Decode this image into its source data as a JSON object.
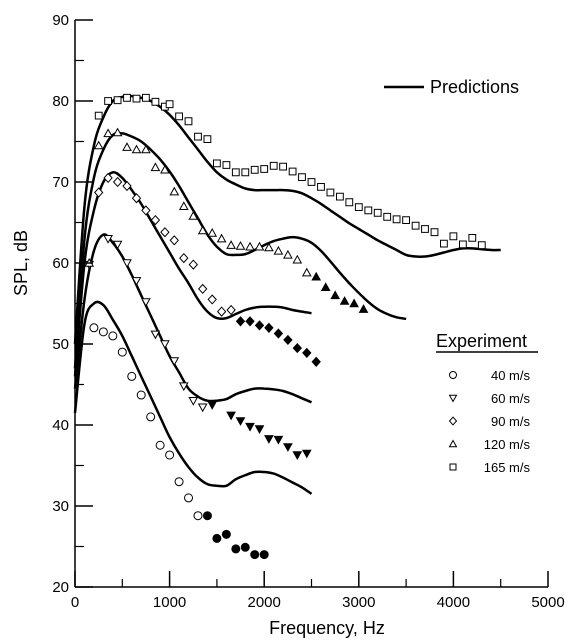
{
  "chart_data": {
    "type": "scatter",
    "title": "",
    "xlabel": "Frequency,   Hz",
    "ylabel": "SPL,   dB",
    "xlim": [
      0,
      5000
    ],
    "ylim": [
      20,
      90
    ],
    "xticks": [
      0,
      1000,
      2000,
      3000,
      4000,
      5000
    ],
    "yticks": [
      20,
      30,
      40,
      50,
      60,
      70,
      80,
      90
    ],
    "grid": false,
    "predictions_label": "Predictions",
    "experiment_title": "Experiment",
    "experiment_series": [
      {
        "name": "40 m/s",
        "marker": "circle",
        "open": [
          [
            200,
            52
          ],
          [
            300,
            51.5
          ],
          [
            400,
            51
          ],
          [
            500,
            49
          ],
          [
            600,
            46
          ],
          [
            700,
            43.7
          ],
          [
            800,
            41
          ],
          [
            900,
            37.5
          ],
          [
            1000,
            36.3
          ],
          [
            1100,
            33
          ],
          [
            1200,
            31
          ],
          [
            1300,
            28.8
          ]
        ],
        "filled": [
          [
            1400,
            28.8
          ],
          [
            1500,
            26
          ],
          [
            1600,
            26.5
          ],
          [
            1700,
            24.7
          ],
          [
            1800,
            24.9
          ],
          [
            1900,
            24
          ],
          [
            2000,
            24
          ]
        ]
      },
      {
        "name": "60 m/s",
        "marker": "triangle-down",
        "open": [
          [
            150,
            59.8
          ],
          [
            350,
            63
          ],
          [
            450,
            62.3
          ],
          [
            550,
            60
          ],
          [
            650,
            57.8
          ],
          [
            750,
            55.2
          ],
          [
            850,
            51.2
          ],
          [
            950,
            50
          ],
          [
            1050,
            47.9
          ],
          [
            1150,
            44.8
          ],
          [
            1250,
            43
          ],
          [
            1350,
            42.2
          ]
        ],
        "filled": [
          [
            1450,
            42.5
          ],
          [
            1650,
            41.2
          ],
          [
            1750,
            40.5
          ],
          [
            1850,
            39.8
          ],
          [
            1950,
            39.5
          ],
          [
            2050,
            38.3
          ],
          [
            2150,
            38.2
          ],
          [
            2250,
            37.3
          ],
          [
            2350,
            36.3
          ],
          [
            2450,
            36.5
          ]
        ]
      },
      {
        "name": "90 m/s",
        "marker": "diamond",
        "open": [
          [
            250,
            68.7
          ],
          [
            350,
            70.5
          ],
          [
            450,
            70
          ],
          [
            550,
            69.5
          ],
          [
            650,
            68
          ],
          [
            750,
            66.5
          ],
          [
            850,
            65.3
          ],
          [
            950,
            63.8
          ],
          [
            1050,
            62.8
          ],
          [
            1150,
            60.6
          ],
          [
            1250,
            59.8
          ],
          [
            1350,
            56.8
          ],
          [
            1450,
            55.5
          ],
          [
            1550,
            54
          ],
          [
            1650,
            54.2
          ]
        ],
        "filled": [
          [
            1750,
            52.8
          ],
          [
            1850,
            52.8
          ],
          [
            1950,
            52.3
          ],
          [
            2050,
            52
          ],
          [
            2150,
            51.3
          ],
          [
            2250,
            50.5
          ],
          [
            2350,
            49.5
          ],
          [
            2450,
            48.9
          ],
          [
            2550,
            47.8
          ]
        ]
      },
      {
        "name": "120 m/s",
        "marker": "triangle-up",
        "open": [
          [
            150,
            60
          ],
          [
            250,
            74.5
          ],
          [
            350,
            76
          ],
          [
            450,
            76.1
          ],
          [
            550,
            74.3
          ],
          [
            650,
            74
          ],
          [
            750,
            74
          ],
          [
            850,
            71.8
          ],
          [
            950,
            71.5
          ],
          [
            1050,
            68.8
          ],
          [
            1150,
            67
          ],
          [
            1250,
            65.8
          ],
          [
            1350,
            64
          ],
          [
            1450,
            63.7
          ],
          [
            1550,
            63
          ],
          [
            1650,
            62.2
          ],
          [
            1750,
            62.1
          ],
          [
            1850,
            62
          ],
          [
            1950,
            62
          ],
          [
            2050,
            61.9
          ],
          [
            2150,
            61.5
          ],
          [
            2250,
            61
          ],
          [
            2350,
            60.4
          ],
          [
            2450,
            58.8
          ]
        ],
        "filled": [
          [
            2550,
            58.3
          ],
          [
            2650,
            57
          ],
          [
            2750,
            56
          ],
          [
            2850,
            55.3
          ],
          [
            2950,
            55
          ],
          [
            3050,
            54.3
          ]
        ]
      },
      {
        "name": "165 m/s",
        "marker": "square",
        "open": [
          [
            250,
            78.2
          ],
          [
            350,
            80
          ],
          [
            450,
            80.1
          ],
          [
            550,
            80.4
          ],
          [
            650,
            80.3
          ],
          [
            750,
            80.4
          ],
          [
            850,
            79.9
          ],
          [
            950,
            79.3
          ],
          [
            1000,
            79.6
          ],
          [
            1100,
            78.1
          ],
          [
            1200,
            77.5
          ],
          [
            1300,
            75.6
          ],
          [
            1400,
            75.3
          ],
          [
            1500,
            72.3
          ],
          [
            1600,
            72.1
          ],
          [
            1700,
            71.2
          ],
          [
            1800,
            71.2
          ],
          [
            1900,
            71.5
          ],
          [
            2000,
            71.6
          ],
          [
            2100,
            72
          ],
          [
            2200,
            71.9
          ],
          [
            2300,
            71.3
          ],
          [
            2400,
            70.6
          ],
          [
            2500,
            70
          ],
          [
            2600,
            69.4
          ],
          [
            2700,
            68.7
          ],
          [
            2800,
            68.2
          ],
          [
            2900,
            67.5
          ],
          [
            3000,
            66.9
          ],
          [
            3100,
            66.5
          ],
          [
            3200,
            66.2
          ],
          [
            3300,
            65.7
          ],
          [
            3400,
            65.4
          ],
          [
            3500,
            65.3
          ],
          [
            3600,
            64.6
          ],
          [
            3700,
            64.2
          ],
          [
            3800,
            63.8
          ],
          [
            3900,
            62.4
          ],
          [
            4000,
            63.3
          ],
          [
            4100,
            62.3
          ],
          [
            4200,
            63.1
          ],
          [
            4300,
            62.2
          ]
        ]
      }
    ],
    "prediction_curves": [
      {
        "x": [
          0,
          100,
          200,
          300,
          400,
          500,
          600,
          700,
          800,
          900,
          1000,
          1100,
          1200,
          1300,
          1400,
          1500,
          1600,
          1700,
          1800,
          1900,
          2000,
          2100,
          2200,
          2300,
          2400,
          2500
        ],
        "y": [
          41.5,
          52.5,
          55,
          54.8,
          53,
          51,
          48.5,
          46,
          43.5,
          41,
          38.5,
          36.5,
          34.8,
          33.5,
          32.7,
          32.5,
          32.5,
          33.3,
          33.8,
          34.2,
          34.2,
          34,
          33.5,
          32.9,
          32.3,
          31.5
        ]
      },
      {
        "x": [
          0,
          100,
          200,
          300,
          400,
          500,
          600,
          700,
          800,
          900,
          1000,
          1100,
          1200,
          1300,
          1400,
          1500,
          1600,
          1700,
          1800,
          1900,
          2000,
          2100,
          2200,
          2300,
          2400,
          2500
        ],
        "y": [
          44.5,
          55.5,
          61.5,
          63.5,
          62.5,
          60.8,
          58.5,
          56,
          53.5,
          51,
          48.5,
          46.5,
          44.5,
          43.5,
          43,
          43,
          43.2,
          43.8,
          44.2,
          44.5,
          44.5,
          44.4,
          44.2,
          43.8,
          43.3,
          42.8
        ]
      },
      {
        "x": [
          0,
          100,
          200,
          300,
          400,
          500,
          600,
          700,
          800,
          900,
          1000,
          1100,
          1200,
          1300,
          1400,
          1500,
          1600,
          1700,
          1800,
          1900,
          2000,
          2100,
          2200,
          2300,
          2400,
          2500
        ],
        "y": [
          46,
          60,
          66.5,
          70,
          71.2,
          70.5,
          69,
          67.3,
          65.3,
          63.3,
          61.3,
          59.3,
          57.5,
          55.5,
          54,
          53.2,
          53.2,
          53.7,
          54.2,
          54.5,
          54.6,
          54.6,
          54.5,
          54.2,
          54,
          53.8
        ]
      },
      {
        "x": [
          0,
          100,
          200,
          300,
          400,
          500,
          600,
          700,
          800,
          900,
          1000,
          1100,
          1200,
          1300,
          1400,
          1500,
          1600,
          1700,
          1800,
          1900,
          2000,
          2100,
          2200,
          2300,
          2400,
          2500,
          2600,
          2700,
          2800,
          2900,
          3000,
          3100,
          3200,
          3300,
          3400,
          3500
        ],
        "y": [
          47,
          63,
          70.5,
          74,
          75.8,
          76,
          75.6,
          75,
          74,
          72.8,
          71.3,
          69.5,
          67.5,
          65.5,
          63.5,
          62,
          61.1,
          61,
          61.1,
          61.6,
          62.2,
          62.7,
          63,
          63.2,
          63,
          62.5,
          61.5,
          60.2,
          58.8,
          57.5,
          56.3,
          55.2,
          54.3,
          53.7,
          53.3,
          53.1
        ]
      },
      {
        "x": [
          0,
          100,
          200,
          300,
          400,
          500,
          600,
          700,
          800,
          900,
          1000,
          1100,
          1200,
          1300,
          1400,
          1500,
          1600,
          1700,
          1800,
          1900,
          2000,
          2100,
          2200,
          2300,
          2400,
          2500,
          2600,
          2700,
          2800,
          2900,
          3000,
          3100,
          3200,
          3300,
          3400,
          3500,
          3600,
          3700,
          3800,
          3900,
          4000,
          4100,
          4200,
          4300,
          4400,
          4500
        ],
        "y": [
          50,
          67,
          74.5,
          78,
          80,
          80.5,
          80.6,
          80.4,
          80,
          79.3,
          78.3,
          77,
          75.5,
          74,
          72.5,
          71.2,
          70.3,
          69.7,
          69.2,
          69,
          69,
          69,
          69,
          68.9,
          68.6,
          68,
          67.3,
          66.5,
          65.7,
          64.9,
          64.2,
          63.5,
          62.8,
          62.2,
          61.6,
          61,
          60.8,
          60.8,
          61,
          61.3,
          61.6,
          61.8,
          61.8,
          61.7,
          61.6,
          61.6
        ]
      }
    ]
  }
}
